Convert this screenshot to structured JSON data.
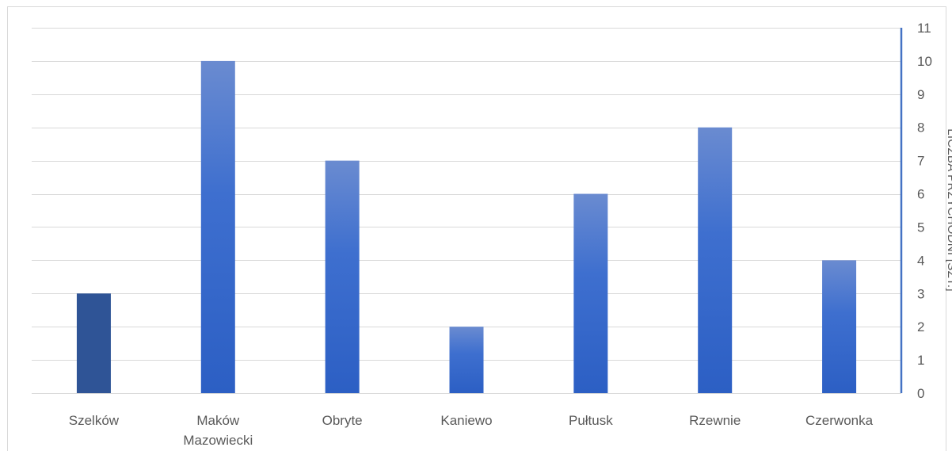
{
  "chart_data": {
    "type": "bar",
    "categories": [
      "Szelków",
      "Maków Mazowiecki",
      "Obryte",
      "Kaniewo",
      "Pułtusk",
      "Rzewnie",
      "Czerwonka"
    ],
    "category_lines": [
      [
        "Szelków"
      ],
      [
        "Maków",
        "Mazowiecki"
      ],
      [
        "Obryte"
      ],
      [
        "Kaniewo"
      ],
      [
        "Pułtusk"
      ],
      [
        "Rzewnie"
      ],
      [
        "Czerwonka"
      ]
    ],
    "values": [
      3,
      10,
      7,
      2,
      6,
      8,
      4
    ],
    "title": "",
    "xlabel": "",
    "ylabel": "LICZBA PRZYCHODNI [SZT.]",
    "ylim": [
      0,
      11
    ],
    "y_ticks": [
      0,
      1,
      2,
      3,
      4,
      5,
      6,
      7,
      8,
      9,
      10,
      11
    ],
    "y_axis_side": "right",
    "grid": true,
    "legend": "none",
    "colors": {
      "bar_top": "#6a8bd0",
      "bar_mid": "#3e6fcf",
      "bar_bottom": "#2c5fc4",
      "bar_highlight": "#2f5496",
      "highlight_index": 0,
      "axis": "#4472c4",
      "grid": "#d9d9d9",
      "border": "#d9d9d9",
      "text": "#595959"
    }
  }
}
